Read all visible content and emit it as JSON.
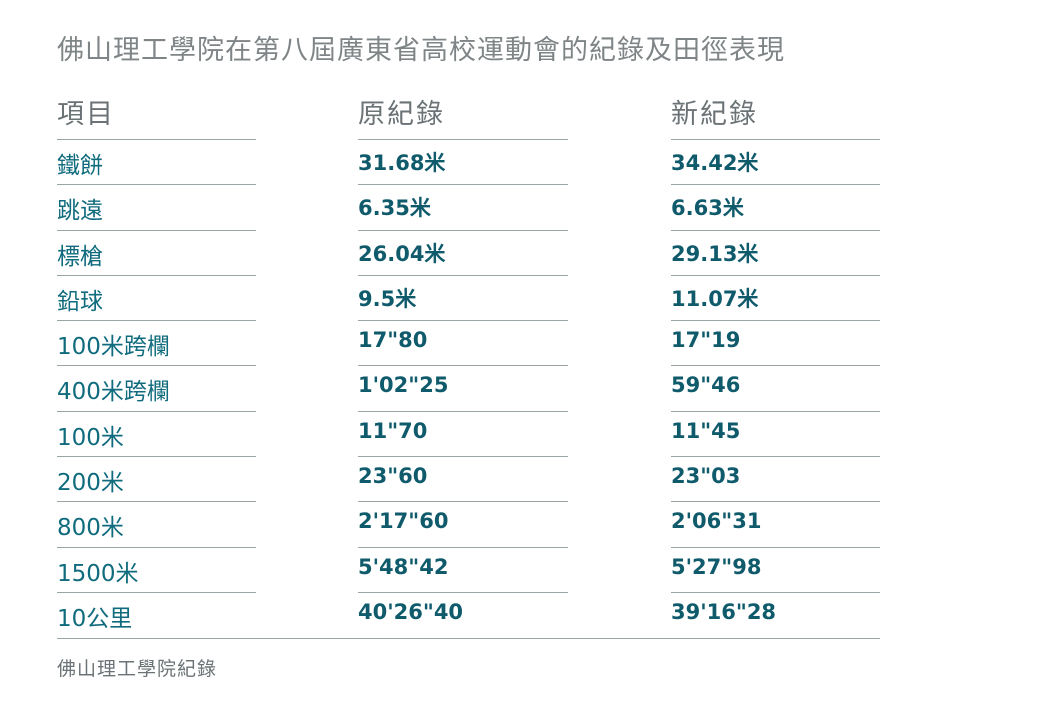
{
  "title": "佛山理工學院在第八屆廣東省高校運動會的紀錄及田徑表現",
  "table": {
    "headers": [
      "項目",
      "原紀錄",
      "新紀錄"
    ],
    "rows": [
      {
        "event": "鐵餅",
        "old": "31.68米",
        "new": "34.42米"
      },
      {
        "event": "跳遠",
        "old": "6.35米",
        "new": "6.63米"
      },
      {
        "event": "標槍",
        "old": "26.04米",
        "new": "29.13米"
      },
      {
        "event": "鉛球",
        "old": "9.5米",
        "new": "11.07米"
      },
      {
        "event": "100米跨欄",
        "old": "17\"80",
        "new": "17\"19"
      },
      {
        "event": "400米跨欄",
        "old": "1'02\"25",
        "new": "59\"46"
      },
      {
        "event": "100米",
        "old": "11\"70",
        "new": "11\"45"
      },
      {
        "event": "200米",
        "old": "23\"60",
        "new": "23\"03"
      },
      {
        "event": "800米",
        "old": "2'17\"60",
        "new": "2'06\"31"
      },
      {
        "event": "1500米",
        "old": "5'48\"42",
        "new": "5'27\"98"
      },
      {
        "event": "10公里",
        "old": "40'26\"40",
        "new": "39'16\"28"
      }
    ]
  },
  "source": "佛山理工學院紀錄",
  "colors": {
    "title": "#7f8587",
    "event_text": "#0f6b7d",
    "value_text": "#0f5a6b",
    "rule": "#9aa3a6"
  }
}
